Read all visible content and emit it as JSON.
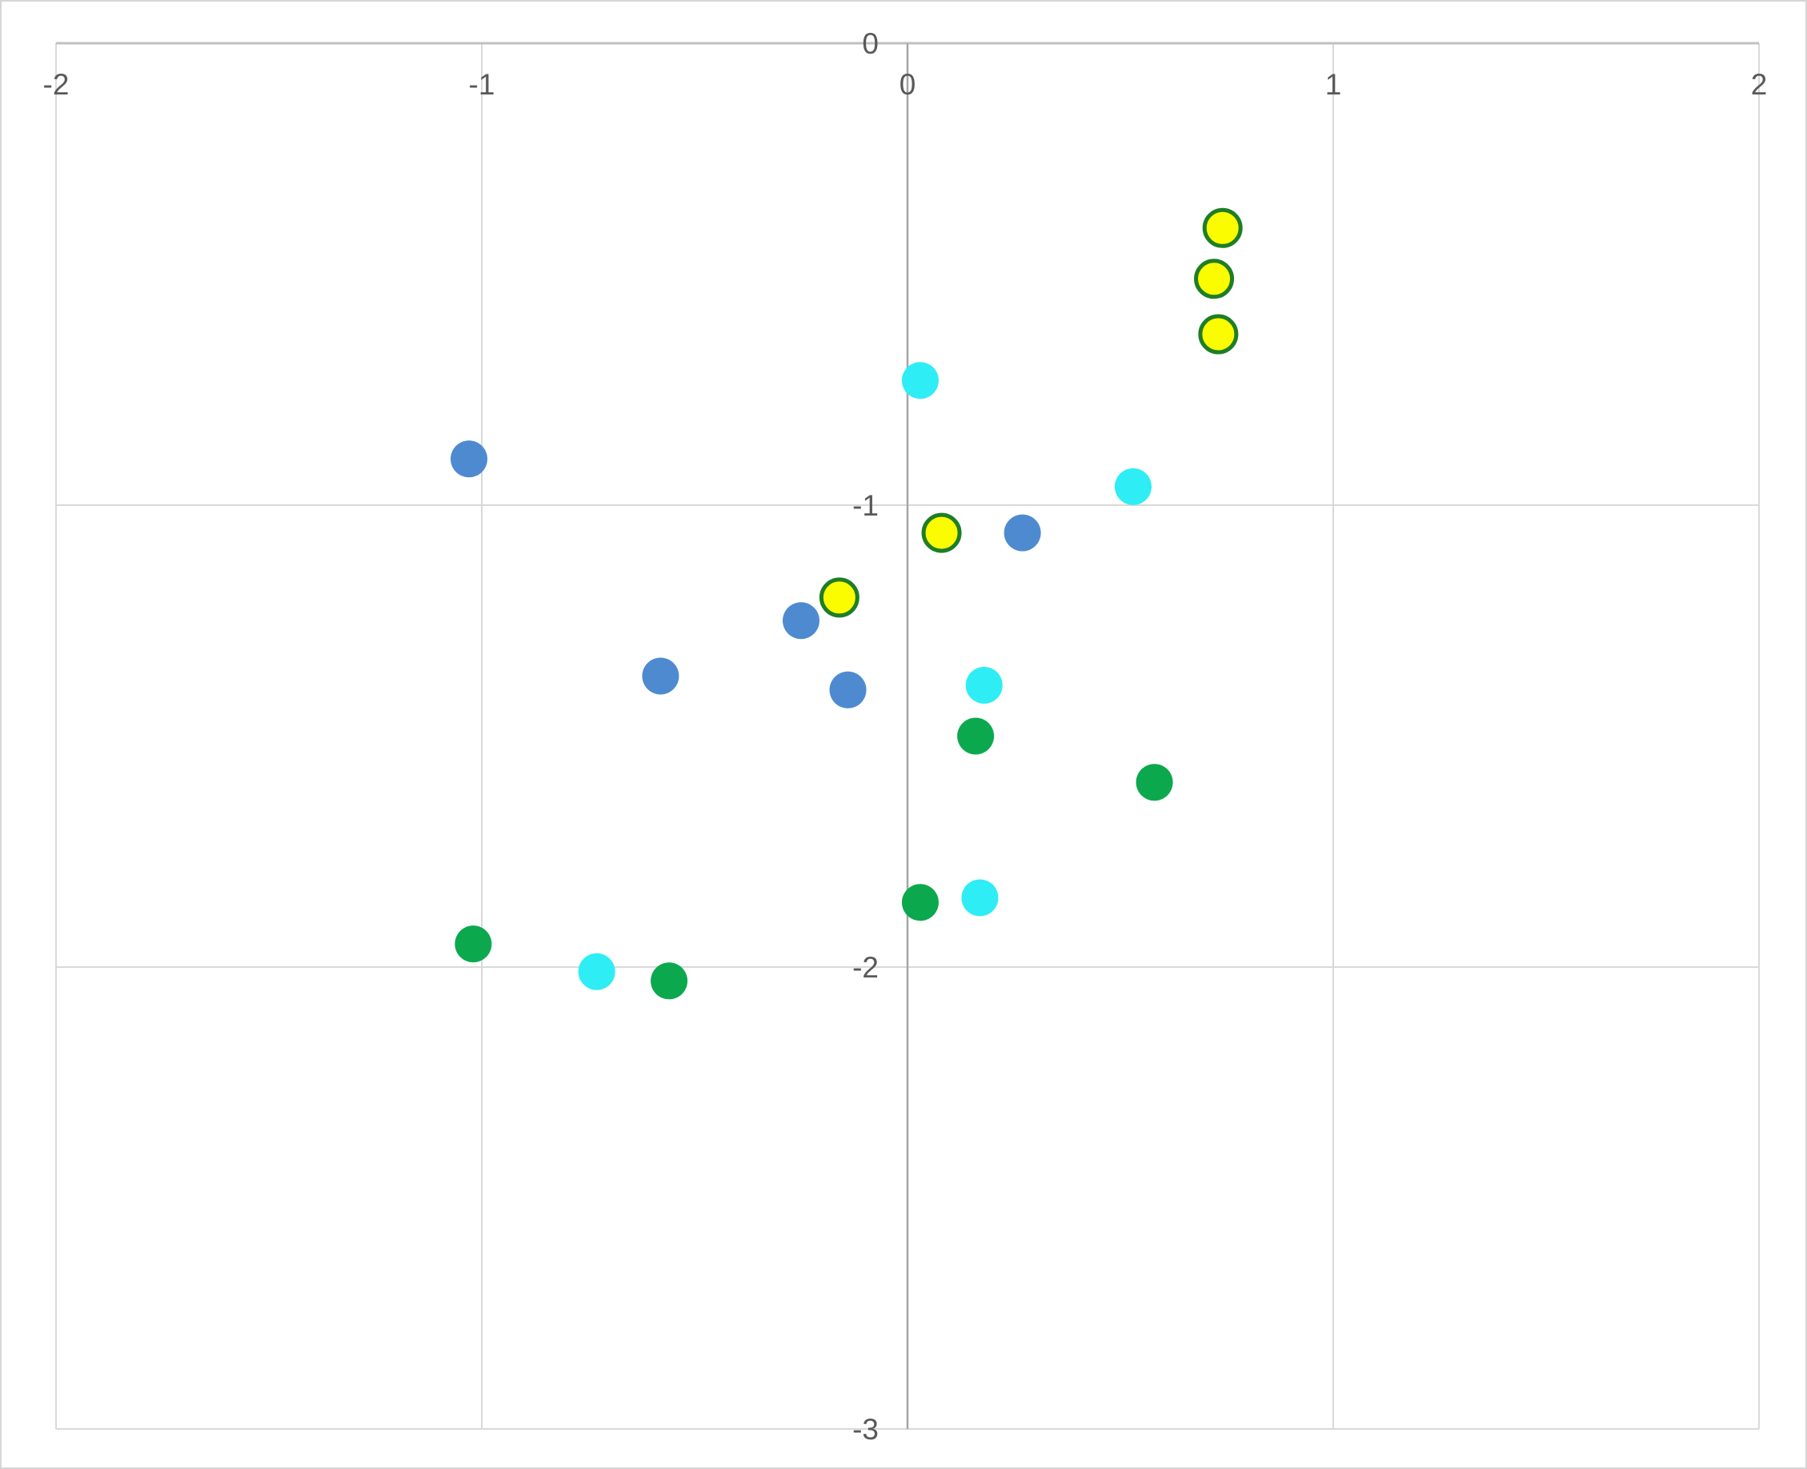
{
  "chart_data": {
    "type": "scatter",
    "title": "",
    "xlabel": "",
    "ylabel": "",
    "xlim": [
      -2,
      2
    ],
    "ylim": [
      -3,
      0
    ],
    "x_tick_values": [
      -2,
      -1,
      0,
      1,
      2
    ],
    "x_tick_labels": [
      "-2",
      "-1",
      "0",
      "1",
      "2"
    ],
    "y_tick_values": [
      0,
      -1,
      -2,
      -3
    ],
    "y_tick_labels": [
      "0",
      "-1",
      "-2",
      "-3"
    ],
    "grid": true,
    "legend": "none",
    "colors": {
      "background": "#FFFFFF",
      "chart_border": "#D6D6D6",
      "gridline": "#D9D9D9",
      "x_axis_line": "#C0C0C0",
      "y_axis_line": "#A6A6A6",
      "axis_label": "#595959"
    },
    "series": [
      {
        "name": "series-blue",
        "marker_color": "#4E8AD0",
        "marker_outline": "none",
        "points": [
          {
            "x": -1.03,
            "y": -0.9
          },
          {
            "x": 0.27,
            "y": -1.06
          },
          {
            "x": -0.25,
            "y": -1.25
          },
          {
            "x": -0.58,
            "y": -1.37
          },
          {
            "x": -0.14,
            "y": -1.4
          }
        ]
      },
      {
        "name": "series-cyan",
        "marker_color": "#2EEDF4",
        "marker_outline": "none",
        "points": [
          {
            "x": 0.03,
            "y": -0.73
          },
          {
            "x": 0.53,
            "y": -0.96
          },
          {
            "x": 0.18,
            "y": -1.39
          },
          {
            "x": 0.17,
            "y": -1.85
          },
          {
            "x": -0.73,
            "y": -2.01
          }
        ]
      },
      {
        "name": "series-green",
        "marker_color": "#0CA84E",
        "marker_outline": "none",
        "points": [
          {
            "x": 0.16,
            "y": -1.5
          },
          {
            "x": 0.58,
            "y": -1.6
          },
          {
            "x": 0.03,
            "y": -1.86
          },
          {
            "x": -1.02,
            "y": -1.95
          },
          {
            "x": -0.56,
            "y": -2.03
          }
        ]
      },
      {
        "name": "series-yellow",
        "marker_color": "#FCFC00",
        "marker_outline": "#1E7E26",
        "points": [
          {
            "x": 0.74,
            "y": -0.4
          },
          {
            "x": 0.72,
            "y": -0.51
          },
          {
            "x": 0.73,
            "y": -0.63
          },
          {
            "x": 0.08,
            "y": -1.06
          },
          {
            "x": -0.16,
            "y": -1.2
          }
        ]
      }
    ]
  }
}
